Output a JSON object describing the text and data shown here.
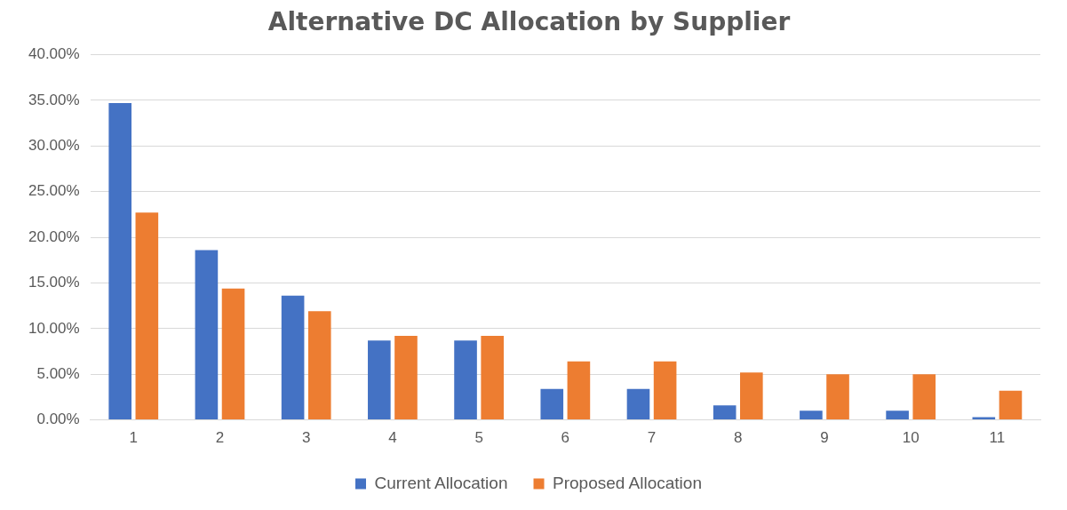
{
  "chart_data": {
    "type": "bar",
    "title": "Alternative DC Allocation by Supplier",
    "categories": [
      "1",
      "2",
      "3",
      "4",
      "5",
      "6",
      "7",
      "8",
      "9",
      "10",
      "11"
    ],
    "series": [
      {
        "name": "Current Allocation",
        "color": "#4472c4",
        "values": [
          34.7,
          18.6,
          13.6,
          8.7,
          8.7,
          3.4,
          3.4,
          1.6,
          1.0,
          1.0,
          0.3
        ]
      },
      {
        "name": "Proposed Allocation",
        "color": "#ed7d31",
        "values": [
          22.7,
          14.4,
          11.9,
          9.2,
          9.2,
          6.4,
          6.4,
          5.2,
          5.0,
          5.0,
          3.2
        ]
      }
    ],
    "ylim": [
      0,
      40
    ],
    "yticks": [
      {
        "value": 0,
        "label": "0.00%"
      },
      {
        "value": 5,
        "label": "5.00%"
      },
      {
        "value": 10,
        "label": "10.00%"
      },
      {
        "value": 15,
        "label": "15.00%"
      },
      {
        "value": 20,
        "label": "20.00%"
      },
      {
        "value": 25,
        "label": "25.00%"
      },
      {
        "value": 30,
        "label": "30.00%"
      },
      {
        "value": 35,
        "label": "35.00%"
      },
      {
        "value": 40,
        "label": "40.00%"
      }
    ],
    "grid": "y",
    "legend": "bottom"
  }
}
